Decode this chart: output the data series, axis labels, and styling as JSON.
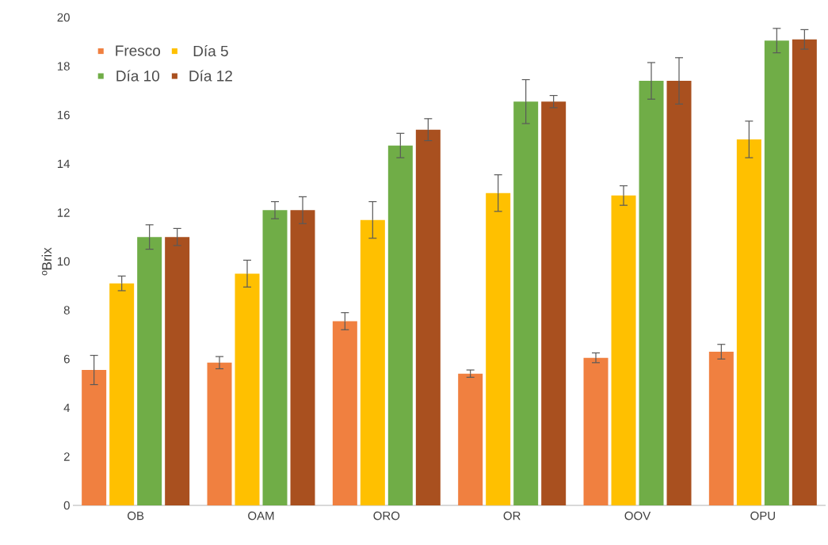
{
  "chart_data": {
    "type": "bar",
    "ylabel": "ºBrix",
    "categories": [
      "OB",
      "OAM",
      "ORO",
      "OR",
      "OOV",
      "OPU"
    ],
    "series": [
      {
        "name": "Fresco",
        "color": "#f08040",
        "values": [
          5.55,
          5.85,
          7.55,
          5.4,
          6.05,
          6.3
        ],
        "errors": [
          0.6,
          0.25,
          0.35,
          0.15,
          0.2,
          0.3
        ]
      },
      {
        "name": "Día 5",
        "color": "#ffc000",
        "values": [
          9.1,
          9.5,
          11.7,
          12.8,
          12.7,
          15.0
        ],
        "errors": [
          0.3,
          0.55,
          0.75,
          0.75,
          0.4,
          0.75
        ]
      },
      {
        "name": "Día 10",
        "color": "#70ad47",
        "values": [
          11.0,
          12.1,
          14.75,
          16.55,
          17.4,
          19.05
        ],
        "errors": [
          0.5,
          0.35,
          0.5,
          0.9,
          0.75,
          0.5
        ]
      },
      {
        "name": "Día 12",
        "color": "#a9501f",
        "values": [
          11.0,
          12.1,
          15.4,
          16.55,
          17.4,
          19.1
        ],
        "errors": [
          0.35,
          0.55,
          0.45,
          0.25,
          0.95,
          0.4
        ]
      }
    ],
    "ylim": [
      0,
      20
    ],
    "yticks": [
      0,
      2,
      4,
      6,
      8,
      10,
      12,
      14,
      16,
      18,
      20
    ],
    "grid": false,
    "legend": "top left"
  }
}
